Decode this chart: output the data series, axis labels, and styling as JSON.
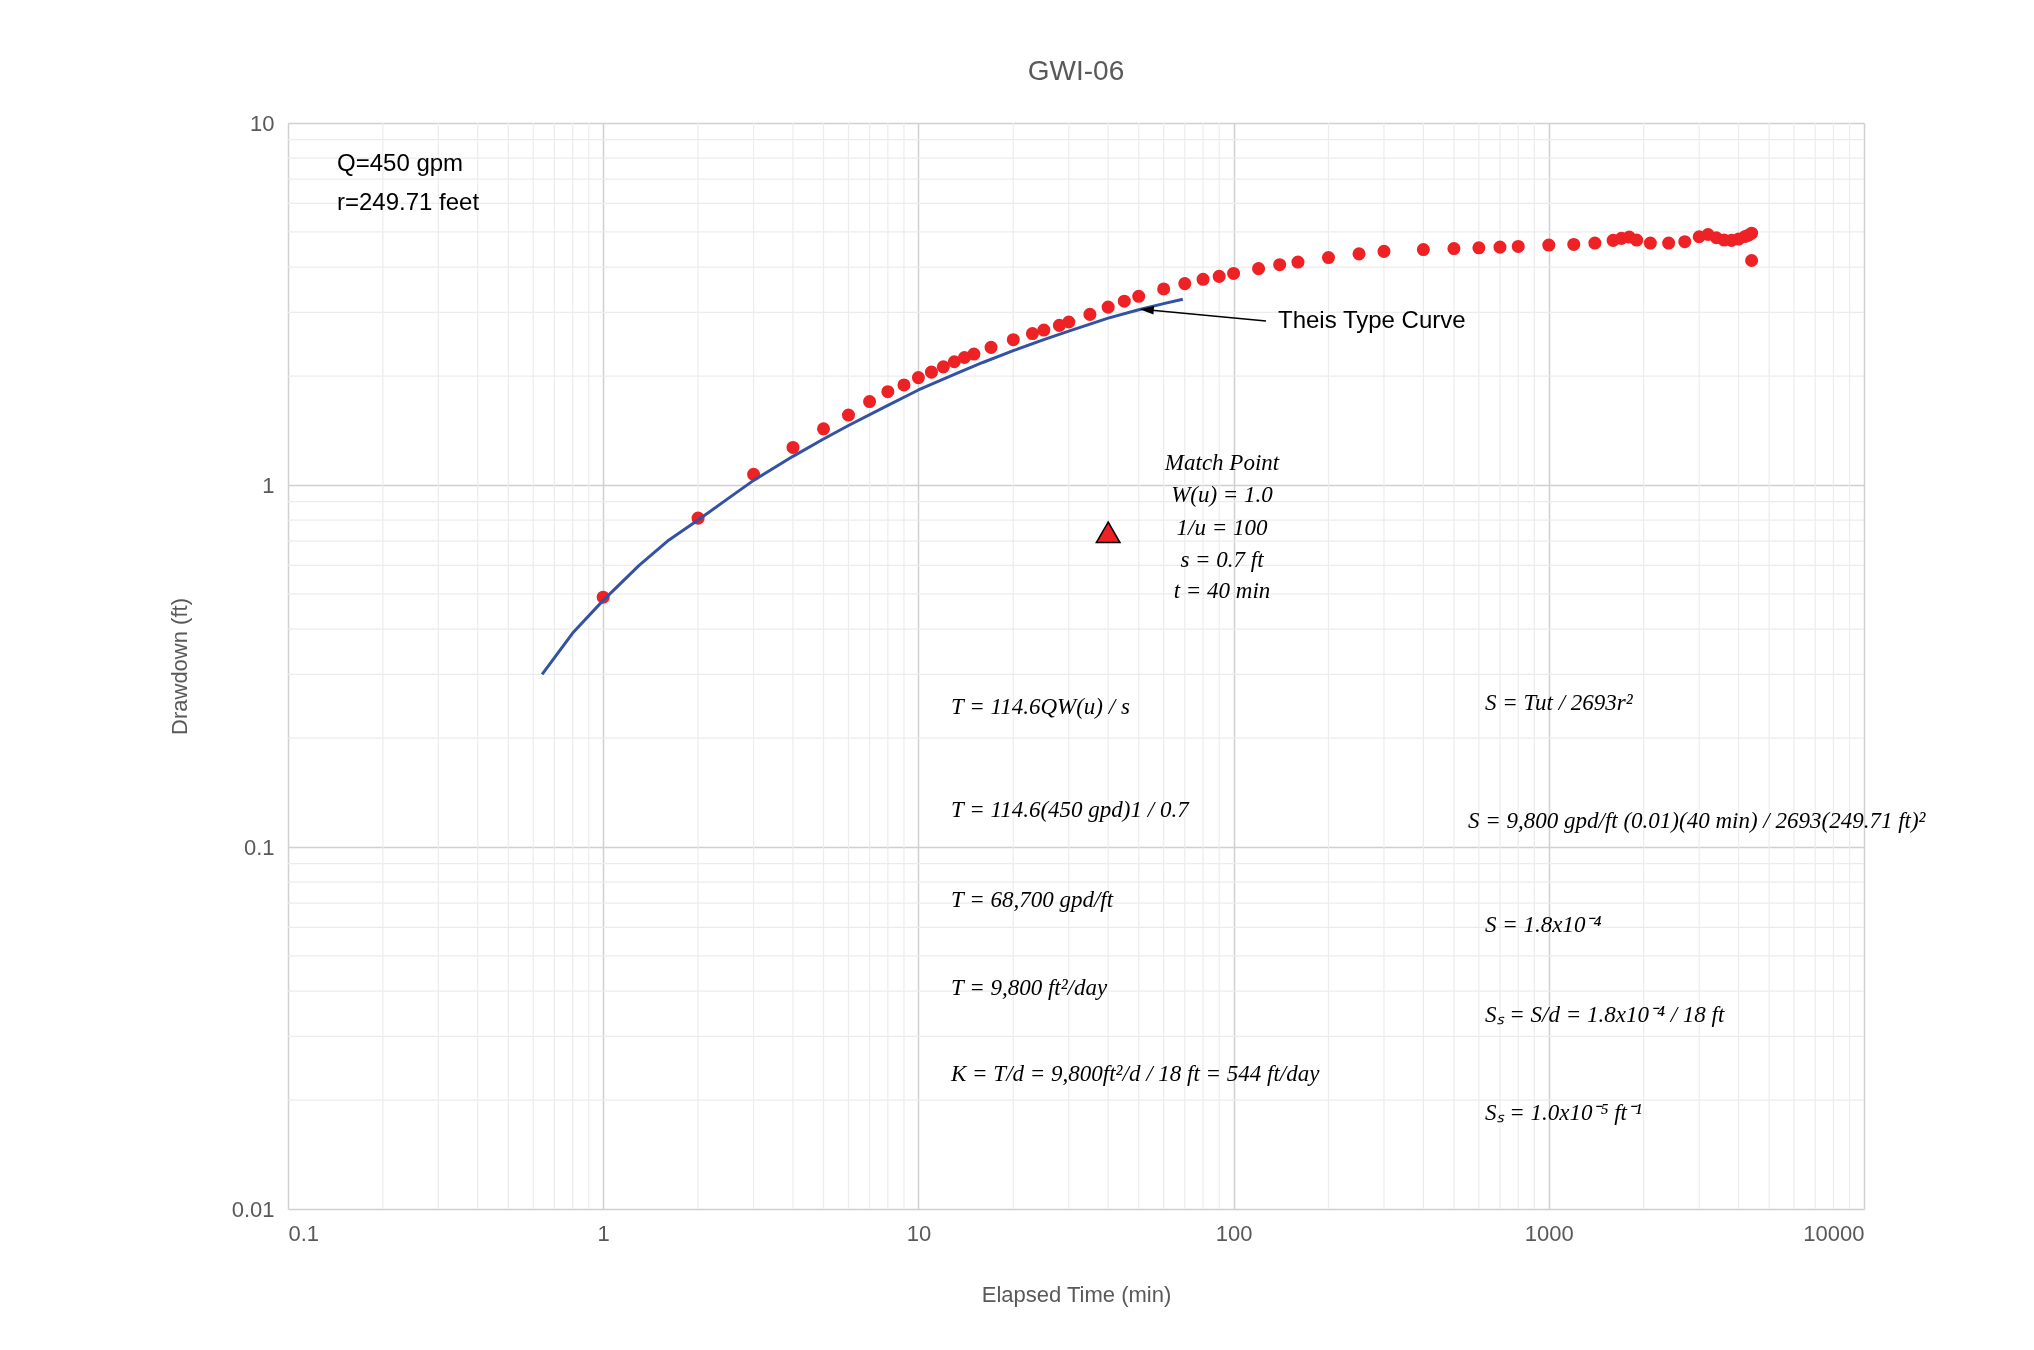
{
  "chart_data": {
    "type": "scatter",
    "title": "GWI-06",
    "xlabel": "Elapsed Time (min)",
    "ylabel": "Drawdown (ft)",
    "log": "xy",
    "xlim": [
      0.1,
      10000
    ],
    "ylim": [
      0.01,
      10
    ],
    "xticks": [
      0.1,
      1,
      10,
      100,
      1000,
      10000
    ],
    "yticks": [
      0.01,
      0.1,
      1,
      10
    ],
    "grid": true,
    "series": [
      {
        "marker": "circle",
        "color": "#ee2125",
        "x": [
          1,
          2,
          3,
          4,
          5,
          6,
          7,
          8,
          9,
          10,
          11,
          12,
          13,
          14,
          15,
          17,
          20,
          23,
          25,
          28,
          30,
          35,
          40,
          45,
          50,
          60,
          70,
          80,
          90,
          100,
          120,
          140,
          160,
          200,
          250,
          300,
          400,
          500,
          600,
          700,
          800,
          1000,
          1200,
          1400,
          1600,
          1700,
          1800,
          1900,
          2100,
          2400,
          2700,
          3000,
          3200,
          3400,
          3600,
          3800,
          4000,
          4200,
          4300,
          4400,
          4400
        ],
        "values": [
          0.49,
          0.81,
          1.07,
          1.27,
          1.43,
          1.56,
          1.7,
          1.81,
          1.89,
          1.98,
          2.05,
          2.12,
          2.19,
          2.25,
          2.3,
          2.4,
          2.52,
          2.62,
          2.68,
          2.76,
          2.82,
          2.96,
          3.1,
          3.22,
          3.32,
          3.48,
          3.6,
          3.7,
          3.77,
          3.84,
          3.96,
          4.06,
          4.13,
          4.25,
          4.35,
          4.42,
          4.47,
          4.5,
          4.52,
          4.54,
          4.56,
          4.6,
          4.62,
          4.66,
          4.74,
          4.8,
          4.84,
          4.75,
          4.66,
          4.66,
          4.7,
          4.85,
          4.92,
          4.82,
          4.75,
          4.74,
          4.78,
          4.86,
          4.9,
          4.96,
          4.17
        ]
      },
      {
        "type": "line",
        "line_style": "solid",
        "color": "#3352a3",
        "x": [
          0.64,
          0.8,
          1,
          1.3,
          1.6,
          2,
          2.5,
          3,
          4,
          5,
          6,
          8,
          10,
          13,
          16,
          20,
          25,
          30,
          40,
          50,
          60,
          69
        ],
        "values": [
          0.3,
          0.39,
          0.48,
          0.6,
          0.7,
          0.8,
          0.92,
          1.03,
          1.2,
          1.34,
          1.46,
          1.66,
          1.83,
          2.02,
          2.18,
          2.35,
          2.52,
          2.66,
          2.89,
          3.05,
          3.17,
          3.26
        ]
      },
      {
        "type": "scatter",
        "marker": "triangle",
        "color": "#ee2125",
        "x": [
          40
        ],
        "values": [
          0.74
        ]
      }
    ],
    "annotations": [
      "Q=450 gpm",
      "r=249.71 feet",
      {
        "text": "Theis Type Curve",
        "x": 50,
        "y": 3.05
      },
      "Match Point",
      "W(u) = 1.0",
      "1/u = 100",
      "s = 0.7 ft",
      "t = 40 min",
      "T = 114.6QW(u) / s",
      "T = 114.6(450 gpd)1 / 0.7",
      "T = 68,700 gpd/ft",
      "T = 9,800 ft²/day",
      "K = T/d = 9,800ft²/d / 18 ft = 544 ft/day",
      "S = Tut / 2693r²",
      "S = 9,800 gpd/ft (0.01)(40 min) / 2693(249.71 ft)²",
      "S = 1.8x10⁻⁴",
      "Sₛ = S/d = 1.8x10⁻⁴ / 18 ft",
      "Sₛ = 1.0x10⁻⁵ ft⁻¹"
    ]
  }
}
